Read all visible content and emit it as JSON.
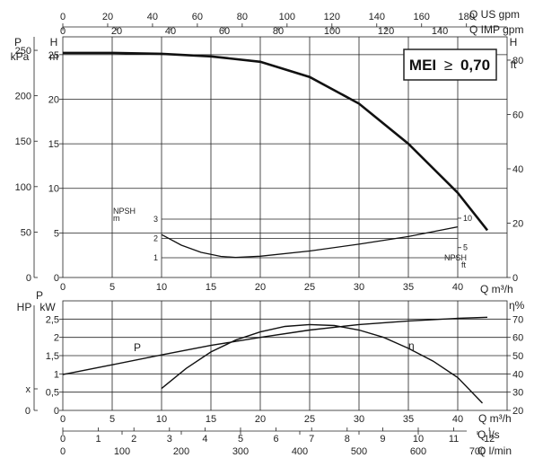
{
  "chart_data": [
    {
      "type": "line",
      "name": "pump-head-curve",
      "title": "",
      "xlabel": "Q m³/h",
      "ylabel": "H m",
      "xlim": [
        0,
        45
      ],
      "ylim": [
        0,
        27
      ],
      "x_ticks": [
        0,
        5,
        10,
        15,
        20,
        25,
        30,
        35,
        40
      ],
      "y_ticks": [
        0,
        5,
        10,
        15,
        20,
        25
      ],
      "grid": true,
      "left_outer_axis": {
        "unit_label": "kPa",
        "label": "P",
        "ticks": [
          0,
          50,
          100,
          150,
          200,
          250
        ]
      },
      "right_axis": {
        "label": "H",
        "unit_label": "ft",
        "ticks": [
          0,
          20,
          40,
          60,
          80
        ]
      },
      "top_axis_us": {
        "label": "Q US gpm",
        "ticks": [
          0,
          20,
          40,
          60,
          80,
          100,
          120,
          140,
          160,
          180
        ]
      },
      "top_axis_imp": {
        "label": "Q IMP gpm",
        "ticks": [
          0,
          20,
          40,
          60,
          80,
          100,
          120,
          140
        ]
      },
      "badge": {
        "prefix": "MEI",
        "symbol": "≥",
        "value": "0,70"
      },
      "series": [
        {
          "key": "head",
          "x": [
            0,
            5,
            10,
            15,
            20,
            25,
            30,
            35,
            40,
            43
          ],
          "y": [
            25.2,
            25.2,
            25.1,
            24.8,
            24.2,
            22.5,
            19.5,
            15.0,
            9.5,
            5.3
          ]
        }
      ]
    },
    {
      "type": "line",
      "name": "npsh-curve",
      "title": "",
      "ylabel": "NPSH m",
      "right_label": "NPSH ft",
      "y_ticks": [
        1,
        2,
        3
      ],
      "right_ticks": [
        5,
        10
      ],
      "series": [
        {
          "key": "npsh",
          "x": [
            10,
            12,
            14,
            16,
            17.5,
            20,
            25,
            30,
            35,
            40
          ],
          "y": [
            2.2,
            1.65,
            1.28,
            1.07,
            1.02,
            1.08,
            1.35,
            1.7,
            2.1,
            2.6
          ]
        }
      ]
    },
    {
      "type": "line",
      "name": "power-efficiency-curve",
      "title": "",
      "xlabel": "Q m³/h",
      "xlim": [
        0,
        45
      ],
      "ylim": [
        0,
        3
      ],
      "x_ticks": [
        0,
        5,
        10,
        15,
        20,
        25,
        30,
        35,
        40
      ],
      "y_ticks": [
        0,
        0.5,
        1,
        1.5,
        2,
        2.5
      ],
      "y_tick_labels": [
        "0",
        "0,5",
        "1",
        "1,5",
        "2",
        "2,5"
      ],
      "left_axis_labels": [
        "HP",
        "P",
        "kW"
      ],
      "left_outer_tick": "x",
      "right_axis": {
        "label": "η%",
        "ticks": [
          20,
          30,
          40,
          50,
          60,
          70
        ]
      },
      "bottom_axis_ls": {
        "label": "Q l/s",
        "ticks": [
          0,
          1,
          2,
          3,
          4,
          5,
          6,
          7,
          8,
          9,
          10,
          11,
          12
        ]
      },
      "bottom_axis_lmin": {
        "label": "Q l/min",
        "ticks": [
          0,
          100,
          200,
          300,
          400,
          500,
          600,
          700
        ]
      },
      "series": [
        {
          "key": "power",
          "name": "P",
          "x": [
            0,
            5,
            10,
            15,
            20,
            25,
            30,
            35,
            40,
            43
          ],
          "y": [
            0.98,
            1.25,
            1.52,
            1.78,
            2.0,
            2.2,
            2.35,
            2.45,
            2.52,
            2.55
          ]
        },
        {
          "key": "efficiency",
          "name": "η",
          "x": [
            10,
            12.5,
            15,
            17.5,
            20,
            22.5,
            25,
            27.5,
            30,
            32.5,
            35,
            37.5,
            40,
            42.5
          ],
          "y": [
            32,
            43,
            52,
            58.5,
            63,
            66,
            67,
            66.5,
            64,
            60,
            54,
            47,
            38,
            24
          ]
        }
      ]
    }
  ]
}
